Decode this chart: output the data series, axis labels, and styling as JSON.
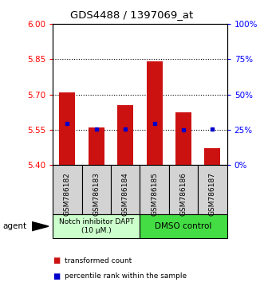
{
  "title": "GDS4488 / 1397069_at",
  "categories": [
    "GSM786182",
    "GSM786183",
    "GSM786184",
    "GSM786185",
    "GSM786186",
    "GSM786187"
  ],
  "bar_tops": [
    5.71,
    5.56,
    5.655,
    5.84,
    5.625,
    5.47
  ],
  "bar_bottoms": [
    5.4,
    5.4,
    5.4,
    5.4,
    5.4,
    5.4
  ],
  "blue_dots": [
    5.575,
    5.553,
    5.553,
    5.575,
    5.55,
    5.552
  ],
  "ylim": [
    5.4,
    6.0
  ],
  "yticks_left": [
    5.4,
    5.55,
    5.7,
    5.85,
    6.0
  ],
  "yticks_right_pct": [
    0,
    25,
    50,
    75,
    100
  ],
  "bar_color": "#cc1111",
  "dot_color": "#0000cc",
  "group1_label": "Notch inhibitor DAPT\n(10 μM.)",
  "group2_label": "DMSO control",
  "group1_color": "#ccffcc",
  "group2_color": "#44dd44",
  "legend_bar_label": "transformed count",
  "legend_dot_label": "percentile rank within the sample",
  "agent_label": "agent",
  "dotted_ticks": [
    5.55,
    5.7,
    5.85
  ],
  "xlabel_gray_bg": "#d3d3d3"
}
